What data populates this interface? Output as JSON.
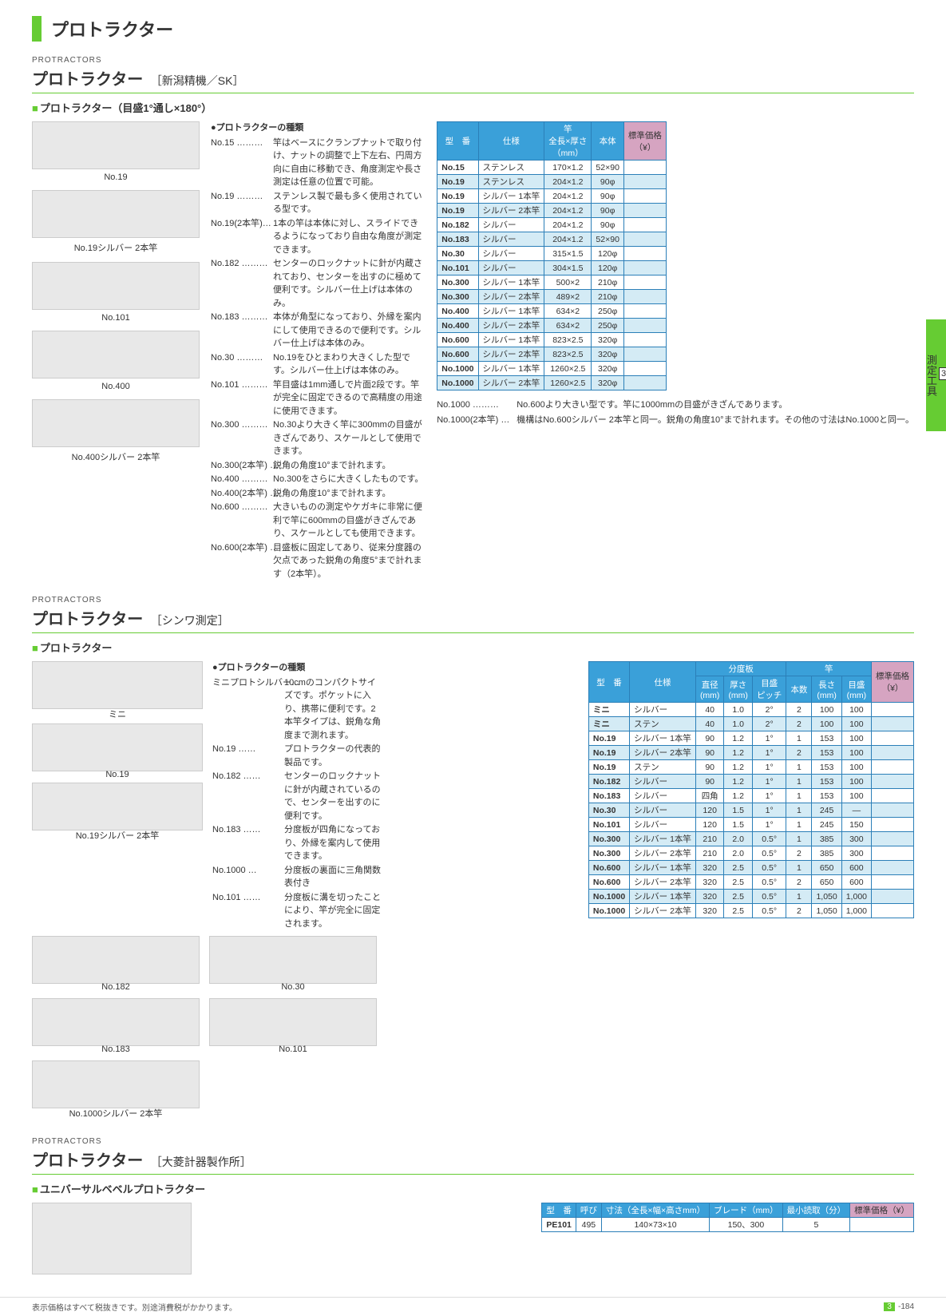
{
  "page": {
    "main_title": "プロトラクター",
    "sidebar_num": "3",
    "sidebar_label": "測定工具",
    "footer_note": "表示価格はすべて税抜きです。別途消費税がかかります。",
    "page_num_section": "3",
    "page_num": "-184"
  },
  "sec1": {
    "subhead": "PROTRACTORS",
    "title": "プロトラクター",
    "maker": "［新潟精機／SK］",
    "green_label": "プロトラクター（目盛1°通し×180°）",
    "images": [
      "No.19",
      "No.19シルバー 2本竿",
      "No.101",
      "No.400",
      "No.400シルバー 2本竿"
    ],
    "desc_lead": "●プロトラクターの種類",
    "desc": [
      {
        "k": "No.15 ………",
        "v": "竿はベースにクランプナットで取り付け、ナットの調整で上下左右、円周方向に自由に移動でき、角度測定や長さ測定は任意の位置で可能。"
      },
      {
        "k": "No.19 ………",
        "v": "ステンレス製で最も多く使用されている型です。"
      },
      {
        "k": "No.19(2本竿)…",
        "v": "1本の竿は本体に対し、スライドできるようになっており自由な角度が測定できます。"
      },
      {
        "k": "No.182 ………",
        "v": "センターのロックナットに針が内蔵されており、センターを出すのに極めて便利です。シルバー仕上げは本体のみ。"
      },
      {
        "k": "No.183 ………",
        "v": "本体が角型になっており、外縁を案内にして使用できるので便利です。シルバー仕上げは本体のみ。"
      },
      {
        "k": "No.30 ………",
        "v": "No.19をひとまわり大きくした型です。シルバー仕上げは本体のみ。"
      },
      {
        "k": "No.101 ………",
        "v": "竿目盛は1mm通しで片面2段です。竿が完全に固定できるので高精度の用途に使用できます。"
      },
      {
        "k": "No.300 ………",
        "v": "No.30より大きく竿に300mmの目盛がきざんであり、スケールとして使用できます。"
      },
      {
        "k": "No.300(2本竿) …",
        "v": "鋭角の角度10°まで計れます。"
      },
      {
        "k": "No.400 ………",
        "v": "No.300をさらに大きくしたものです。"
      },
      {
        "k": "No.400(2本竿) …",
        "v": "鋭角の角度10°まで計れます。"
      },
      {
        "k": "No.600 ………",
        "v": "大きいものの測定やケガキに非常に便利で竿に600mmの目盛がきざんであり、スケールとしても使用できます。"
      },
      {
        "k": "No.600(2本竿) …",
        "v": "目盛板に固定してあり、従来分度器の欠点であった鋭角の角度5°まで計れます（2本竿）。"
      }
    ],
    "notes": [
      {
        "k": "No.1000 ………",
        "v": "No.600より大きい型です。竿に1000mmの目盛がきざんであります。"
      },
      {
        "k": "No.1000(2本竿) …",
        "v": "機構はNo.600シルバー 2本竿と同一。鋭角の角度10°まで計れます。その他の寸法はNo.1000と同一。"
      }
    ],
    "table": {
      "headers": [
        "型　番",
        "仕様",
        "竿\n全長×厚さ\n（mm）",
        "本体",
        "標準価格\n（¥）"
      ],
      "rows": [
        [
          "No.15",
          "ステンレス",
          "170×1.2",
          "52×90",
          ""
        ],
        [
          "No.19",
          "ステンレス",
          "204×1.2",
          "90φ",
          ""
        ],
        [
          "No.19",
          "シルバー 1本竿",
          "204×1.2",
          "90φ",
          ""
        ],
        [
          "No.19",
          "シルバー 2本竿",
          "204×1.2",
          "90φ",
          ""
        ],
        [
          "No.182",
          "シルバー",
          "204×1.2",
          "90φ",
          ""
        ],
        [
          "No.183",
          "シルバー",
          "204×1.2",
          "52×90",
          ""
        ],
        [
          "No.30",
          "シルバー",
          "315×1.5",
          "120φ",
          ""
        ],
        [
          "No.101",
          "シルバー",
          "304×1.5",
          "120φ",
          ""
        ],
        [
          "No.300",
          "シルバー 1本竿",
          "500×2",
          "210φ",
          ""
        ],
        [
          "No.300",
          "シルバー 2本竿",
          "489×2",
          "210φ",
          ""
        ],
        [
          "No.400",
          "シルバー 1本竿",
          "634×2",
          "250φ",
          ""
        ],
        [
          "No.400",
          "シルバー 2本竿",
          "634×2",
          "250φ",
          ""
        ],
        [
          "No.600",
          "シルバー 1本竿",
          "823×2.5",
          "320φ",
          ""
        ],
        [
          "No.600",
          "シルバー 2本竿",
          "823×2.5",
          "320φ",
          ""
        ],
        [
          "No.1000",
          "シルバー 1本竿",
          "1260×2.5",
          "320φ",
          ""
        ],
        [
          "No.1000",
          "シルバー 2本竿",
          "1260×2.5",
          "320φ",
          ""
        ]
      ]
    }
  },
  "sec2": {
    "subhead": "PROTRACTORS",
    "title": "プロトラクター",
    "maker": "［シンワ測定］",
    "green_label": "プロトラクター",
    "images": [
      "ミニ",
      "No.19",
      "No.19シルバー 2本竿",
      "No.182",
      "No.30",
      "No.183",
      "No.101",
      "No.1000シルバー 2本竿"
    ],
    "desc_lead": "●プロトラクターの種類",
    "desc": [
      {
        "k": "ミニプロトシルバー…",
        "v": "10cmのコンパクトサイズです。ポケットに入り、携帯に便利です。2本竿タイプは、鋭角な角度まで測れます。"
      },
      {
        "k": "No.19 ……",
        "v": "プロトラクターの代表的製品です。"
      },
      {
        "k": "No.182 ……",
        "v": "センターのロックナットに針が内蔵されているので、センターを出すのに便利です。"
      },
      {
        "k": "No.183 ……",
        "v": "分度板が四角になっており、外縁を案内して使用できます。"
      },
      {
        "k": "No.1000 …",
        "v": "分度板の裏面に三角関数表付き"
      },
      {
        "k": "No.101 ……",
        "v": "分度板に溝を切ったことにより、竿が完全に固定されます。"
      }
    ],
    "table": {
      "top_headers": [
        "型　番",
        "仕様",
        "分度板",
        "竿",
        "標準価格\n（¥）"
      ],
      "sub_headers": [
        "直径\n(mm)",
        "厚さ\n(mm)",
        "目盛\nピッチ",
        "本数",
        "長さ\n(mm)",
        "目盛\n(mm)"
      ],
      "rows": [
        [
          "ミニ",
          "シルバー",
          "40",
          "1.0",
          "2°",
          "2",
          "100",
          "100",
          ""
        ],
        [
          "ミニ",
          "ステン",
          "40",
          "1.0",
          "2°",
          "2",
          "100",
          "100",
          ""
        ],
        [
          "No.19",
          "シルバー 1本竿",
          "90",
          "1.2",
          "1°",
          "1",
          "153",
          "100",
          ""
        ],
        [
          "No.19",
          "シルバー 2本竿",
          "90",
          "1.2",
          "1°",
          "2",
          "153",
          "100",
          ""
        ],
        [
          "No.19",
          "ステン",
          "90",
          "1.2",
          "1°",
          "1",
          "153",
          "100",
          ""
        ],
        [
          "No.182",
          "シルバー",
          "90",
          "1.2",
          "1°",
          "1",
          "153",
          "100",
          ""
        ],
        [
          "No.183",
          "シルバー",
          "四角",
          "1.2",
          "1°",
          "1",
          "153",
          "100",
          ""
        ],
        [
          "No.30",
          "シルバー",
          "120",
          "1.5",
          "1°",
          "1",
          "245",
          "—",
          ""
        ],
        [
          "No.101",
          "シルバー",
          "120",
          "1.5",
          "1°",
          "1",
          "245",
          "150",
          ""
        ],
        [
          "No.300",
          "シルバー 1本竿",
          "210",
          "2.0",
          "0.5°",
          "1",
          "385",
          "300",
          ""
        ],
        [
          "No.300",
          "シルバー 2本竿",
          "210",
          "2.0",
          "0.5°",
          "2",
          "385",
          "300",
          ""
        ],
        [
          "No.600",
          "シルバー 1本竿",
          "320",
          "2.5",
          "0.5°",
          "1",
          "650",
          "600",
          ""
        ],
        [
          "No.600",
          "シルバー 2本竿",
          "320",
          "2.5",
          "0.5°",
          "2",
          "650",
          "600",
          ""
        ],
        [
          "No.1000",
          "シルバー 1本竿",
          "320",
          "2.5",
          "0.5°",
          "1",
          "1,050",
          "1,000",
          ""
        ],
        [
          "No.1000",
          "シルバー 2本竿",
          "320",
          "2.5",
          "0.5°",
          "2",
          "1,050",
          "1,000",
          ""
        ]
      ]
    }
  },
  "sec3": {
    "subhead": "PROTRACTORS",
    "title": "プロトラクター",
    "maker": "［大菱計器製作所］",
    "green_label": "ユニバーサルベベルプロトラクター",
    "table": {
      "headers": [
        "型　番",
        "呼び",
        "寸法（全長×幅×高さmm）",
        "ブレード（mm）",
        "最小読取（分）",
        "標準価格（¥）"
      ],
      "rows": [
        [
          "PE101",
          "495",
          "140×73×10",
          "150、300",
          "5",
          ""
        ]
      ]
    }
  }
}
